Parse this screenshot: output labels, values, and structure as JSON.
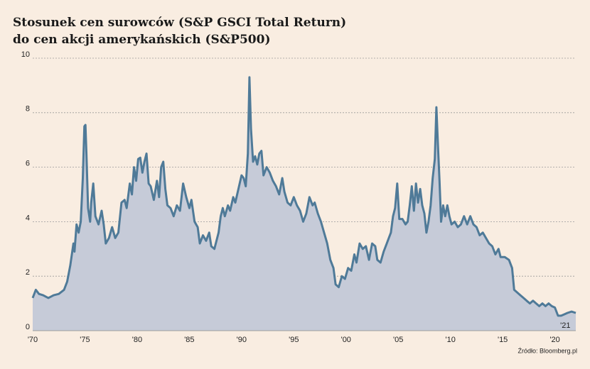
{
  "chart_data": {
    "type": "area",
    "title": "Stosunek cen surowców (S&P GSCI Total Return)",
    "subtitle": "do cen akcji amerykańskich (S&P500)",
    "source": "Źródło: Bloomberg.pl",
    "line_color": "#4f7a98",
    "fill_color": "#c6cbd8",
    "grid": true,
    "xlim": [
      1970,
      2022
    ],
    "ylim": [
      0,
      10
    ],
    "yticks": [
      0,
      2,
      4,
      6,
      8,
      10
    ],
    "xticks": [
      {
        "value": 1970,
        "label": "'70"
      },
      {
        "value": 1975,
        "label": "'75"
      },
      {
        "value": 1980,
        "label": "'80"
      },
      {
        "value": 1985,
        "label": "'85"
      },
      {
        "value": 1990,
        "label": "'90"
      },
      {
        "value": 1995,
        "label": "'95"
      },
      {
        "value": 2000,
        "label": "'00"
      },
      {
        "value": 2005,
        "label": "'05"
      },
      {
        "value": 2010,
        "label": "'10"
      },
      {
        "value": 2015,
        "label": "'15"
      },
      {
        "value": 2020,
        "label": "'20"
      }
    ],
    "end_tick": {
      "value": 2021,
      "label": "'21"
    },
    "x": [
      1970.0,
      1970.3,
      1970.6,
      1971,
      1971.5,
      1972,
      1972.5,
      1973,
      1973.3,
      1973.6,
      1973.9,
      1974.0,
      1974.2,
      1974.4,
      1974.6,
      1974.8,
      1974.95,
      1975.05,
      1975.15,
      1975.3,
      1975.5,
      1975.6,
      1975.8,
      1976.0,
      1976.3,
      1976.6,
      1976.8,
      1977.0,
      1977.3,
      1977.6,
      1977.9,
      1978.2,
      1978.5,
      1978.8,
      1979.0,
      1979.3,
      1979.5,
      1979.7,
      1979.9,
      1980.1,
      1980.3,
      1980.5,
      1980.7,
      1980.9,
      1981.1,
      1981.3,
      1981.6,
      1981.9,
      1982.1,
      1982.3,
      1982.5,
      1982.7,
      1982.9,
      1983.2,
      1983.5,
      1983.8,
      1984.1,
      1984.4,
      1984.7,
      1985.0,
      1985.2,
      1985.5,
      1985.8,
      1986.0,
      1986.3,
      1986.6,
      1986.9,
      1987.1,
      1987.4,
      1987.8,
      1988.0,
      1988.2,
      1988.4,
      1988.7,
      1988.9,
      1989.2,
      1989.4,
      1989.7,
      1990.0,
      1990.2,
      1990.4,
      1990.6,
      1990.75,
      1990.9,
      1991.1,
      1991.3,
      1991.5,
      1991.7,
      1991.9,
      1992.1,
      1992.4,
      1992.7,
      1993.0,
      1993.3,
      1993.6,
      1993.9,
      1994.1,
      1994.4,
      1994.7,
      1995.0,
      1995.3,
      1995.6,
      1995.9,
      1996.2,
      1996.5,
      1996.8,
      1997.0,
      1997.3,
      1997.6,
      1997.9,
      1998.2,
      1998.5,
      1998.8,
      1999.0,
      1999.3,
      1999.6,
      1999.9,
      2000.2,
      2000.5,
      2000.8,
      2001.0,
      2001.3,
      2001.6,
      2001.9,
      2002.2,
      2002.5,
      2002.8,
      2003.0,
      2003.3,
      2003.6,
      2003.9,
      2004.1,
      2004.3,
      2004.5,
      2004.7,
      2004.9,
      2005.1,
      2005.4,
      2005.7,
      2005.9,
      2006.1,
      2006.3,
      2006.5,
      2006.7,
      2006.9,
      2007.1,
      2007.3,
      2007.5,
      2007.7,
      2007.9,
      2008.1,
      2008.3,
      2008.5,
      2008.65,
      2008.8,
      2008.95,
      2009.1,
      2009.3,
      2009.5,
      2009.7,
      2009.9,
      2010.1,
      2010.4,
      2010.7,
      2011.0,
      2011.3,
      2011.6,
      2011.9,
      2012.2,
      2012.5,
      2012.8,
      2013.1,
      2013.4,
      2013.7,
      2014.0,
      2014.3,
      2014.6,
      2014.8,
      2015.2,
      2015.6,
      2015.9,
      2016.1,
      2016.4,
      2016.7,
      2017.0,
      2017.3,
      2017.6,
      2017.9,
      2018.2,
      2018.5,
      2018.8,
      2019.1,
      2019.4,
      2019.7,
      2020.0,
      2020.3,
      2020.6,
      2020.9,
      2021.2,
      2021.6,
      2022.0
    ],
    "values": [
      1.2,
      1.5,
      1.35,
      1.3,
      1.2,
      1.3,
      1.35,
      1.5,
      1.8,
      2.4,
      3.2,
      2.9,
      3.9,
      3.6,
      4.0,
      5.6,
      7.5,
      7.55,
      6.4,
      4.5,
      4.0,
      4.7,
      5.4,
      4.2,
      3.9,
      4.4,
      3.9,
      3.2,
      3.4,
      3.8,
      3.4,
      3.6,
      4.7,
      4.8,
      4.5,
      5.4,
      5.0,
      6.0,
      5.5,
      6.3,
      6.35,
      5.8,
      6.2,
      6.5,
      5.4,
      5.3,
      4.8,
      5.5,
      4.9,
      6.0,
      6.2,
      5.2,
      4.6,
      4.5,
      4.2,
      4.6,
      4.4,
      5.4,
      4.9,
      4.5,
      4.8,
      4.0,
      3.8,
      3.2,
      3.5,
      3.3,
      3.6,
      3.1,
      3.0,
      3.6,
      4.2,
      4.5,
      4.2,
      4.6,
      4.4,
      4.9,
      4.7,
      5.2,
      5.7,
      5.6,
      5.3,
      6.5,
      9.3,
      7.4,
      6.2,
      6.4,
      6.1,
      6.5,
      6.6,
      5.7,
      6.0,
      5.8,
      5.5,
      5.3,
      5.0,
      5.6,
      5.1,
      4.7,
      4.6,
      4.9,
      4.6,
      4.4,
      4.0,
      4.3,
      4.9,
      4.6,
      4.7,
      4.3,
      4.0,
      3.6,
      3.2,
      2.6,
      2.3,
      1.7,
      1.6,
      2.0,
      1.9,
      2.3,
      2.2,
      2.8,
      2.5,
      3.2,
      3.0,
      3.1,
      2.6,
      3.2,
      3.1,
      2.6,
      2.5,
      2.9,
      3.2,
      3.4,
      3.6,
      4.2,
      4.5,
      5.4,
      4.1,
      4.1,
      3.9,
      4.0,
      4.6,
      5.3,
      4.4,
      5.4,
      4.7,
      5.2,
      4.6,
      4.3,
      3.6,
      4.0,
      4.6,
      5.6,
      6.3,
      8.2,
      6.8,
      5.5,
      4.0,
      4.6,
      4.2,
      4.6,
      4.2,
      3.9,
      4.0,
      3.8,
      3.9,
      4.2,
      3.9,
      4.2,
      3.9,
      3.8,
      3.5,
      3.6,
      3.4,
      3.2,
      3.1,
      2.8,
      3.0,
      2.7,
      2.7,
      2.6,
      2.3,
      1.5,
      1.4,
      1.3,
      1.2,
      1.1,
      1.0,
      1.1,
      1.0,
      0.9,
      1.0,
      0.9,
      1.0,
      0.9,
      0.85,
      0.55,
      0.55,
      0.6,
      0.65,
      0.7,
      0.65
    ]
  }
}
